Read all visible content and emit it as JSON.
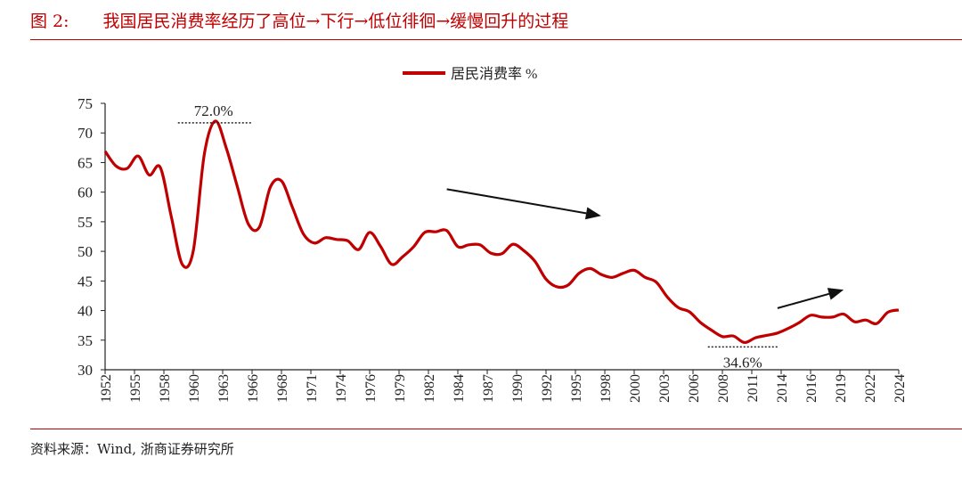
{
  "header": {
    "figure_label": "图 2:",
    "title": "我国居民消费率经历了高位→下行→低位徘徊→缓慢回升的过程"
  },
  "footer": {
    "source": "资料来源：Wind, 浙商证券研究所"
  },
  "colors": {
    "series": "#c00000",
    "accent": "#c00000",
    "text": "#222222"
  },
  "chart_data": {
    "type": "line",
    "title": "",
    "xlabel": "",
    "ylabel": "",
    "ylim": [
      30,
      75
    ],
    "yticks": [
      30,
      35,
      40,
      45,
      50,
      55,
      60,
      65,
      70,
      75
    ],
    "xlim": [
      1952,
      2024
    ],
    "xtick_labels": [
      "1952",
      "1955",
      "1958",
      "1960",
      "1963",
      "1966",
      "1968",
      "1971",
      "1974",
      "1976",
      "1979",
      "1982",
      "1984",
      "1987",
      "1990",
      "1992",
      "1995",
      "1998",
      "2000",
      "2003",
      "2006",
      "2008",
      "2011",
      "2014",
      "2016",
      "2019",
      "2022",
      "2024"
    ],
    "legend": {
      "position": "top-center",
      "entries": [
        "居民消费率 %"
      ]
    },
    "grid": false,
    "series": [
      {
        "name": "居民消费率 %",
        "x": [
          1952,
          1953,
          1954,
          1955,
          1956,
          1957,
          1958,
          1959,
          1960,
          1961,
          1962,
          1963,
          1964,
          1965,
          1966,
          1967,
          1968,
          1969,
          1970,
          1971,
          1972,
          1973,
          1974,
          1975,
          1976,
          1977,
          1978,
          1979,
          1980,
          1981,
          1982,
          1983,
          1984,
          1985,
          1986,
          1987,
          1988,
          1989,
          1990,
          1991,
          1992,
          1993,
          1994,
          1995,
          1996,
          1997,
          1998,
          1999,
          2000,
          2001,
          2002,
          2003,
          2004,
          2005,
          2006,
          2007,
          2008,
          2009,
          2010,
          2011,
          2012,
          2013,
          2014,
          2015,
          2016,
          2017,
          2018,
          2019,
          2020,
          2021,
          2022,
          2023,
          2024
        ],
        "values": [
          66.9,
          64.4,
          64.0,
          66.1,
          62.9,
          64.2,
          55.9,
          47.8,
          50.1,
          66.4,
          72.0,
          67.4,
          60.9,
          54.6,
          54.1,
          60.9,
          61.9,
          57.4,
          52.9,
          51.4,
          52.3,
          52.0,
          51.8,
          50.3,
          53.2,
          50.8,
          47.8,
          49.1,
          50.8,
          53.2,
          53.3,
          53.5,
          50.8,
          51.1,
          51.1,
          49.7,
          49.6,
          51.2,
          50.1,
          48.3,
          45.3,
          44.0,
          44.3,
          46.3,
          47.1,
          46.1,
          45.6,
          46.3,
          46.8,
          45.6,
          44.8,
          42.3,
          40.5,
          39.8,
          38.0,
          36.7,
          35.6,
          35.7,
          34.6,
          35.4,
          35.8,
          36.2,
          37.0,
          38.0,
          39.2,
          38.9,
          38.9,
          39.4,
          38.1,
          38.4,
          37.8,
          39.7,
          40.1
        ]
      }
    ],
    "annotations": [
      {
        "text": "72.0%",
        "kind": "max",
        "year": 1962,
        "value": 72.0
      },
      {
        "text": "34.6%",
        "kind": "min",
        "year": 2010,
        "value": 34.6
      }
    ],
    "trend_arrows": [
      {
        "direction": "down",
        "from": [
          1983,
          60.5
        ],
        "to": [
          1997,
          56
        ]
      },
      {
        "direction": "up",
        "from": [
          2013,
          40.4
        ],
        "to": [
          2019,
          43.5
        ]
      }
    ]
  }
}
